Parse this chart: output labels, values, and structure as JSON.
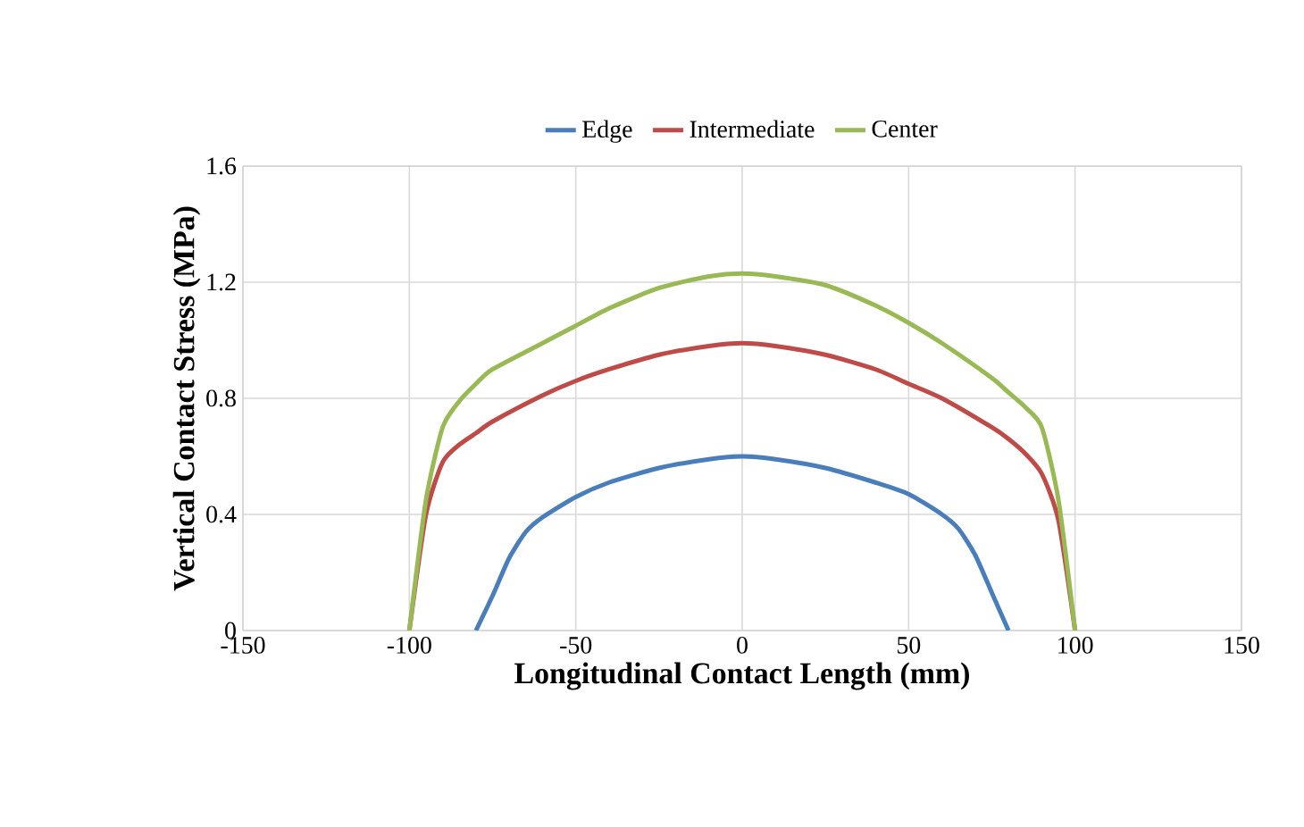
{
  "chart_data": {
    "type": "line",
    "xlabel": "Longitudinal Contact Length (mm)",
    "ylabel": "Vertical Contact Stress (MPa)",
    "xlim": [
      -150,
      150
    ],
    "xticks": [
      -150,
      -100,
      -50,
      0,
      50,
      100,
      150
    ],
    "ylim": [
      0,
      1.6
    ],
    "yticks": [
      0,
      0.4,
      0.8,
      1.2,
      1.6
    ],
    "grid": true,
    "legend": "top",
    "marker": "none",
    "line_style": "solid",
    "series": [
      {
        "name": "Edge",
        "color": "#4a7ebb",
        "x": [
          -80,
          -75,
          -70,
          -65,
          -60,
          -50,
          -40,
          -25,
          -10,
          0,
          10,
          25,
          40,
          50,
          60,
          65,
          70,
          75,
          80
        ],
        "values": [
          0,
          0.12,
          0.25,
          0.34,
          0.39,
          0.46,
          0.51,
          0.56,
          0.59,
          0.6,
          0.59,
          0.56,
          0.51,
          0.47,
          0.4,
          0.35,
          0.26,
          0.13,
          0
        ]
      },
      {
        "name": "Intermediate",
        "color": "#be4b48",
        "x": [
          -100,
          -95,
          -90,
          -85,
          -80,
          -75,
          -60,
          -50,
          -40,
          -25,
          -10,
          0,
          10,
          25,
          40,
          50,
          60,
          75,
          80,
          85,
          90,
          95,
          100
        ],
        "values": [
          0,
          0.4,
          0.58,
          0.64,
          0.68,
          0.72,
          0.81,
          0.86,
          0.9,
          0.95,
          0.98,
          0.99,
          0.98,
          0.95,
          0.9,
          0.85,
          0.8,
          0.7,
          0.66,
          0.61,
          0.54,
          0.38,
          0
        ]
      },
      {
        "name": "Center",
        "color": "#98b954",
        "x": [
          -100,
          -95,
          -90,
          -85,
          -80,
          -75,
          -60,
          -50,
          -40,
          -25,
          -10,
          0,
          10,
          25,
          40,
          50,
          60,
          75,
          80,
          85,
          90,
          95,
          100
        ],
        "values": [
          0,
          0.45,
          0.7,
          0.79,
          0.85,
          0.9,
          0.99,
          1.05,
          1.11,
          1.18,
          1.22,
          1.23,
          1.22,
          1.19,
          1.12,
          1.06,
          0.99,
          0.87,
          0.82,
          0.77,
          0.7,
          0.45,
          0
        ]
      }
    ]
  }
}
